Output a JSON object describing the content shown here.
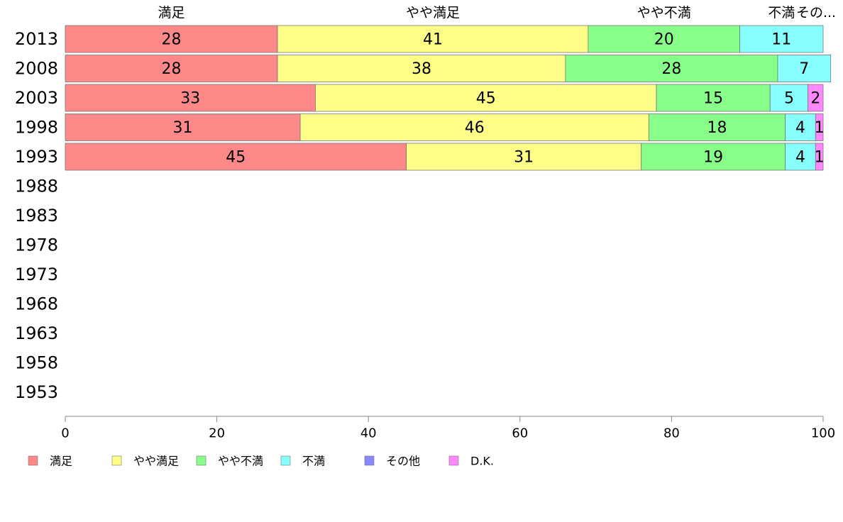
{
  "chart_data": {
    "type": "bar",
    "orientation": "horizontal",
    "stacked": true,
    "categories": [
      "2013",
      "2008",
      "2003",
      "1998",
      "1993",
      "1988",
      "1983",
      "1978",
      "1973",
      "1968",
      "1963",
      "1958",
      "1953"
    ],
    "series": [
      {
        "name": "満足",
        "color": "#ff8888",
        "values": [
          28,
          28,
          33,
          31,
          45,
          null,
          null,
          null,
          null,
          null,
          null,
          null,
          null
        ]
      },
      {
        "name": "やや満足",
        "color": "#ffff88",
        "values": [
          41,
          38,
          45,
          46,
          31,
          null,
          null,
          null,
          null,
          null,
          null,
          null,
          null
        ]
      },
      {
        "name": "やや不満",
        "color": "#88ff88",
        "values": [
          20,
          28,
          15,
          18,
          19,
          null,
          null,
          null,
          null,
          null,
          null,
          null,
          null
        ]
      },
      {
        "name": "不満",
        "color": "#88ffff",
        "values": [
          11,
          7,
          5,
          4,
          4,
          null,
          null,
          null,
          null,
          null,
          null,
          null,
          null
        ]
      },
      {
        "name": "その他",
        "color": "#8888ff",
        "values": [
          0,
          0,
          0,
          0,
          0,
          null,
          null,
          null,
          null,
          null,
          null,
          null,
          null
        ]
      },
      {
        "name": "D.K.",
        "color": "#ff88ff",
        "values": [
          0,
          0,
          2,
          1,
          1,
          null,
          null,
          null,
          null,
          null,
          null,
          null,
          null
        ]
      }
    ],
    "top_labels": [
      "満足",
      "やや満足",
      "やや不満",
      "不満",
      "その..."
    ],
    "xlim": [
      0,
      100
    ],
    "xticks": [
      "0",
      "20",
      "40",
      "60",
      "80",
      "100"
    ],
    "grid": false,
    "legend_position": "bottom"
  }
}
